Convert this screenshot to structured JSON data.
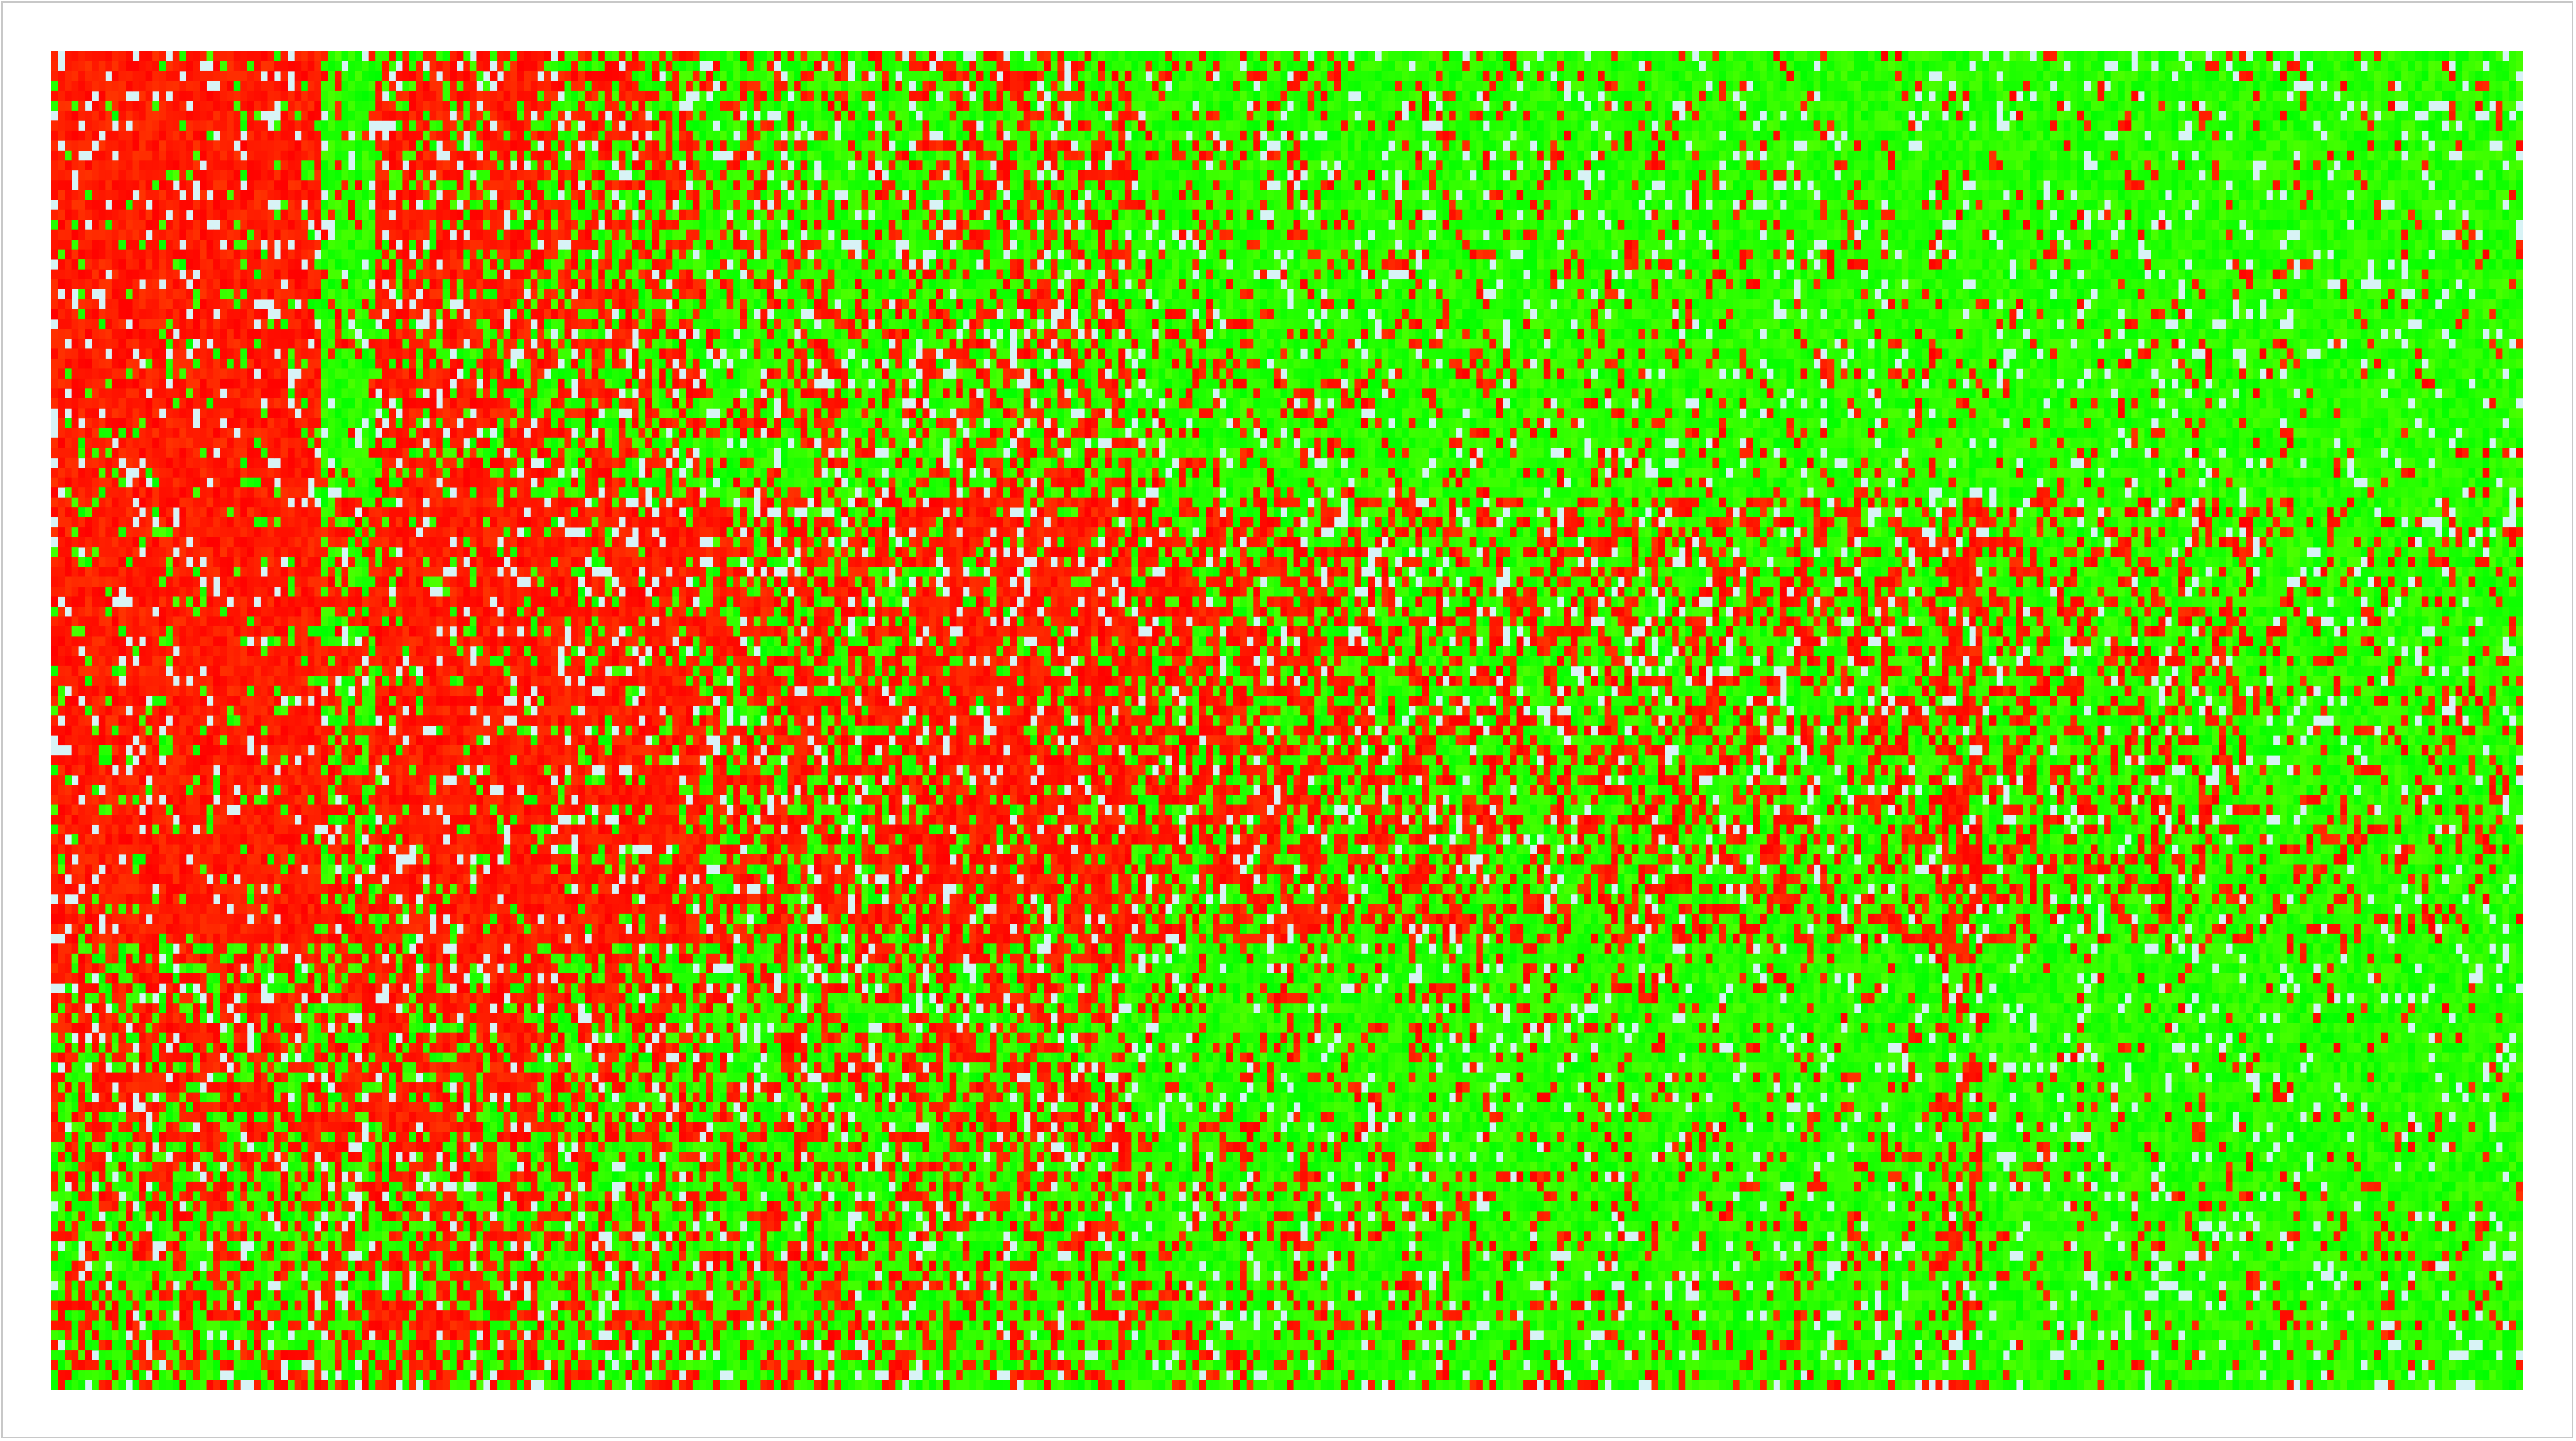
{
  "chart_data": {
    "type": "heatmap",
    "title": "",
    "xlabel": "",
    "ylabel": "",
    "grid": false,
    "legend": "none",
    "colors": {
      "high": "#ff0000",
      "low": "#00ff00",
      "missing": "#d8f3f6",
      "background": "#ffffff",
      "frame": "#c8c8c8"
    },
    "n_rows": 135,
    "column_groups": [
      {
        "name": "",
        "columns": 40,
        "levels": [
          0.95,
          0.95,
          0.65,
          0.45
        ]
      },
      {
        "name": "",
        "columns": 8,
        "levels": [
          0.15,
          0.55,
          0.65,
          0.5
        ]
      },
      {
        "name": "",
        "columns": 24,
        "levels": [
          0.75,
          0.9,
          0.75,
          0.6
        ]
      },
      {
        "name": "",
        "columns": 24,
        "levels": [
          0.55,
          0.85,
          0.55,
          0.45
        ]
      },
      {
        "name": "",
        "columns": 32,
        "levels": [
          0.3,
          0.65,
          0.4,
          0.35
        ]
      },
      {
        "name": "",
        "columns": 32,
        "levels": [
          0.45,
          0.8,
          0.5,
          0.4
        ]
      },
      {
        "name": "",
        "columns": 32,
        "levels": [
          0.2,
          0.6,
          0.2,
          0.25
        ]
      },
      {
        "name": "",
        "columns": 48,
        "levels": [
          0.15,
          0.45,
          0.15,
          0.2
        ]
      },
      {
        "name": "",
        "columns": 40,
        "levels": [
          0.1,
          0.4,
          0.1,
          0.15
        ]
      },
      {
        "name": "",
        "columns": 6,
        "levels": [
          0.05,
          0.7,
          0.45,
          0.4
        ]
      },
      {
        "name": "",
        "columns": 40,
        "levels": [
          0.05,
          0.35,
          0.05,
          0.1
        ]
      },
      {
        "name": "",
        "columns": 40,
        "levels": [
          0.02,
          0.2,
          0.02,
          0.05
        ]
      }
    ],
    "row_bands": [
      {
        "name": "",
        "rows": 45
      },
      {
        "name": "",
        "rows": 45
      },
      {
        "name": "",
        "rows": 20
      },
      {
        "name": "",
        "rows": 25
      }
    ],
    "missing_rate": 0.08,
    "seed": 17
  }
}
